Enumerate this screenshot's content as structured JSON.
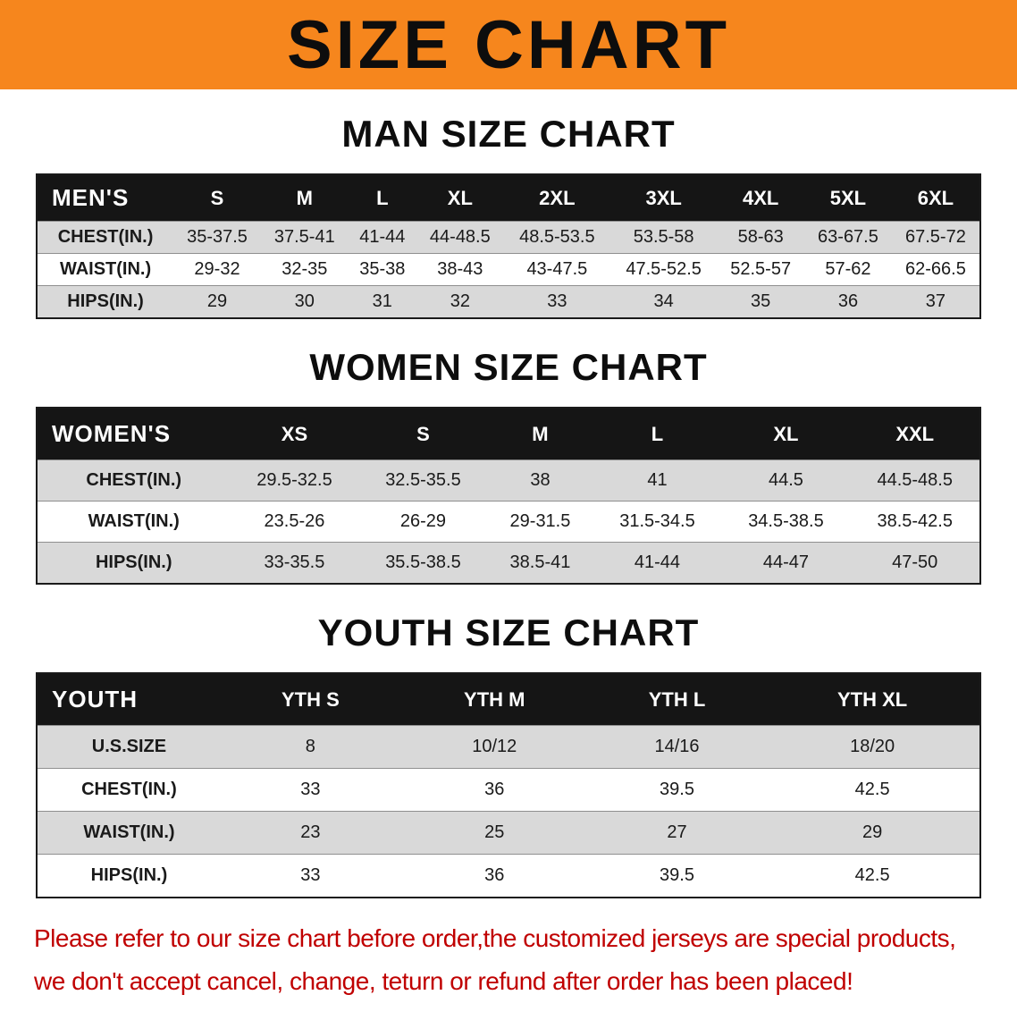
{
  "banner": {
    "title": "SIZE CHART"
  },
  "colors": {
    "banner_bg": "#F6861D",
    "header_bg": "#151515",
    "row_alt": "#D9D9D9",
    "notice_red": "#C00000"
  },
  "sections": [
    {
      "id": "men",
      "heading": "MAN SIZE CHART",
      "table": {
        "header": [
          "MEN'S",
          "S",
          "M",
          "L",
          "XL",
          "2XL",
          "3XL",
          "4XL",
          "5XL",
          "6XL"
        ],
        "rows": [
          {
            "label": "CHEST(IN.)",
            "values": [
              "35-37.5",
              "37.5-41",
              "41-44",
              "44-48.5",
              "48.5-53.5",
              "53.5-58",
              "58-63",
              "63-67.5",
              "67.5-72"
            ]
          },
          {
            "label": "WAIST(IN.)",
            "values": [
              "29-32",
              "32-35",
              "35-38",
              "38-43",
              "43-47.5",
              "47.5-52.5",
              "52.5-57",
              "57-62",
              "62-66.5"
            ]
          },
          {
            "label": "HIPS(IN.)",
            "values": [
              "29",
              "30",
              "31",
              "32",
              "33",
              "34",
              "35",
              "36",
              "37"
            ]
          }
        ]
      }
    },
    {
      "id": "women",
      "heading": "WOMEN SIZE CHART",
      "table": {
        "header": [
          "WOMEN'S",
          "XS",
          "S",
          "M",
          "L",
          "XL",
          "XXL"
        ],
        "rows": [
          {
            "label": "CHEST(IN.)",
            "values": [
              "29.5-32.5",
              "32.5-35.5",
              "38",
              "41",
              "44.5",
              "44.5-48.5"
            ]
          },
          {
            "label": "WAIST(IN.)",
            "values": [
              "23.5-26",
              "26-29",
              "29-31.5",
              "31.5-34.5",
              "34.5-38.5",
              "38.5-42.5"
            ]
          },
          {
            "label": "HIPS(IN.)",
            "values": [
              "33-35.5",
              "35.5-38.5",
              "38.5-41",
              "41-44",
              "44-47",
              "47-50"
            ]
          }
        ]
      }
    },
    {
      "id": "youth",
      "heading": "YOUTH SIZE CHART",
      "table": {
        "header": [
          "YOUTH",
          "YTH S",
          "YTH M",
          "YTH L",
          "YTH XL"
        ],
        "rows": [
          {
            "label": "U.S.SIZE",
            "values": [
              "8",
              "10/12",
              "14/16",
              "18/20"
            ]
          },
          {
            "label": "CHEST(IN.)",
            "values": [
              "33",
              "36",
              "39.5",
              "42.5"
            ]
          },
          {
            "label": "WAIST(IN.)",
            "values": [
              "23",
              "25",
              "27",
              "29"
            ]
          },
          {
            "label": "HIPS(IN.)",
            "values": [
              "33",
              "36",
              "39.5",
              "42.5"
            ]
          }
        ]
      }
    }
  ],
  "notice": {
    "line1": "Please refer to our size chart before order,the customized jerseys are special products,",
    "line2": "we don't accept cancel, change, teturn or refund after order has been placed!"
  }
}
